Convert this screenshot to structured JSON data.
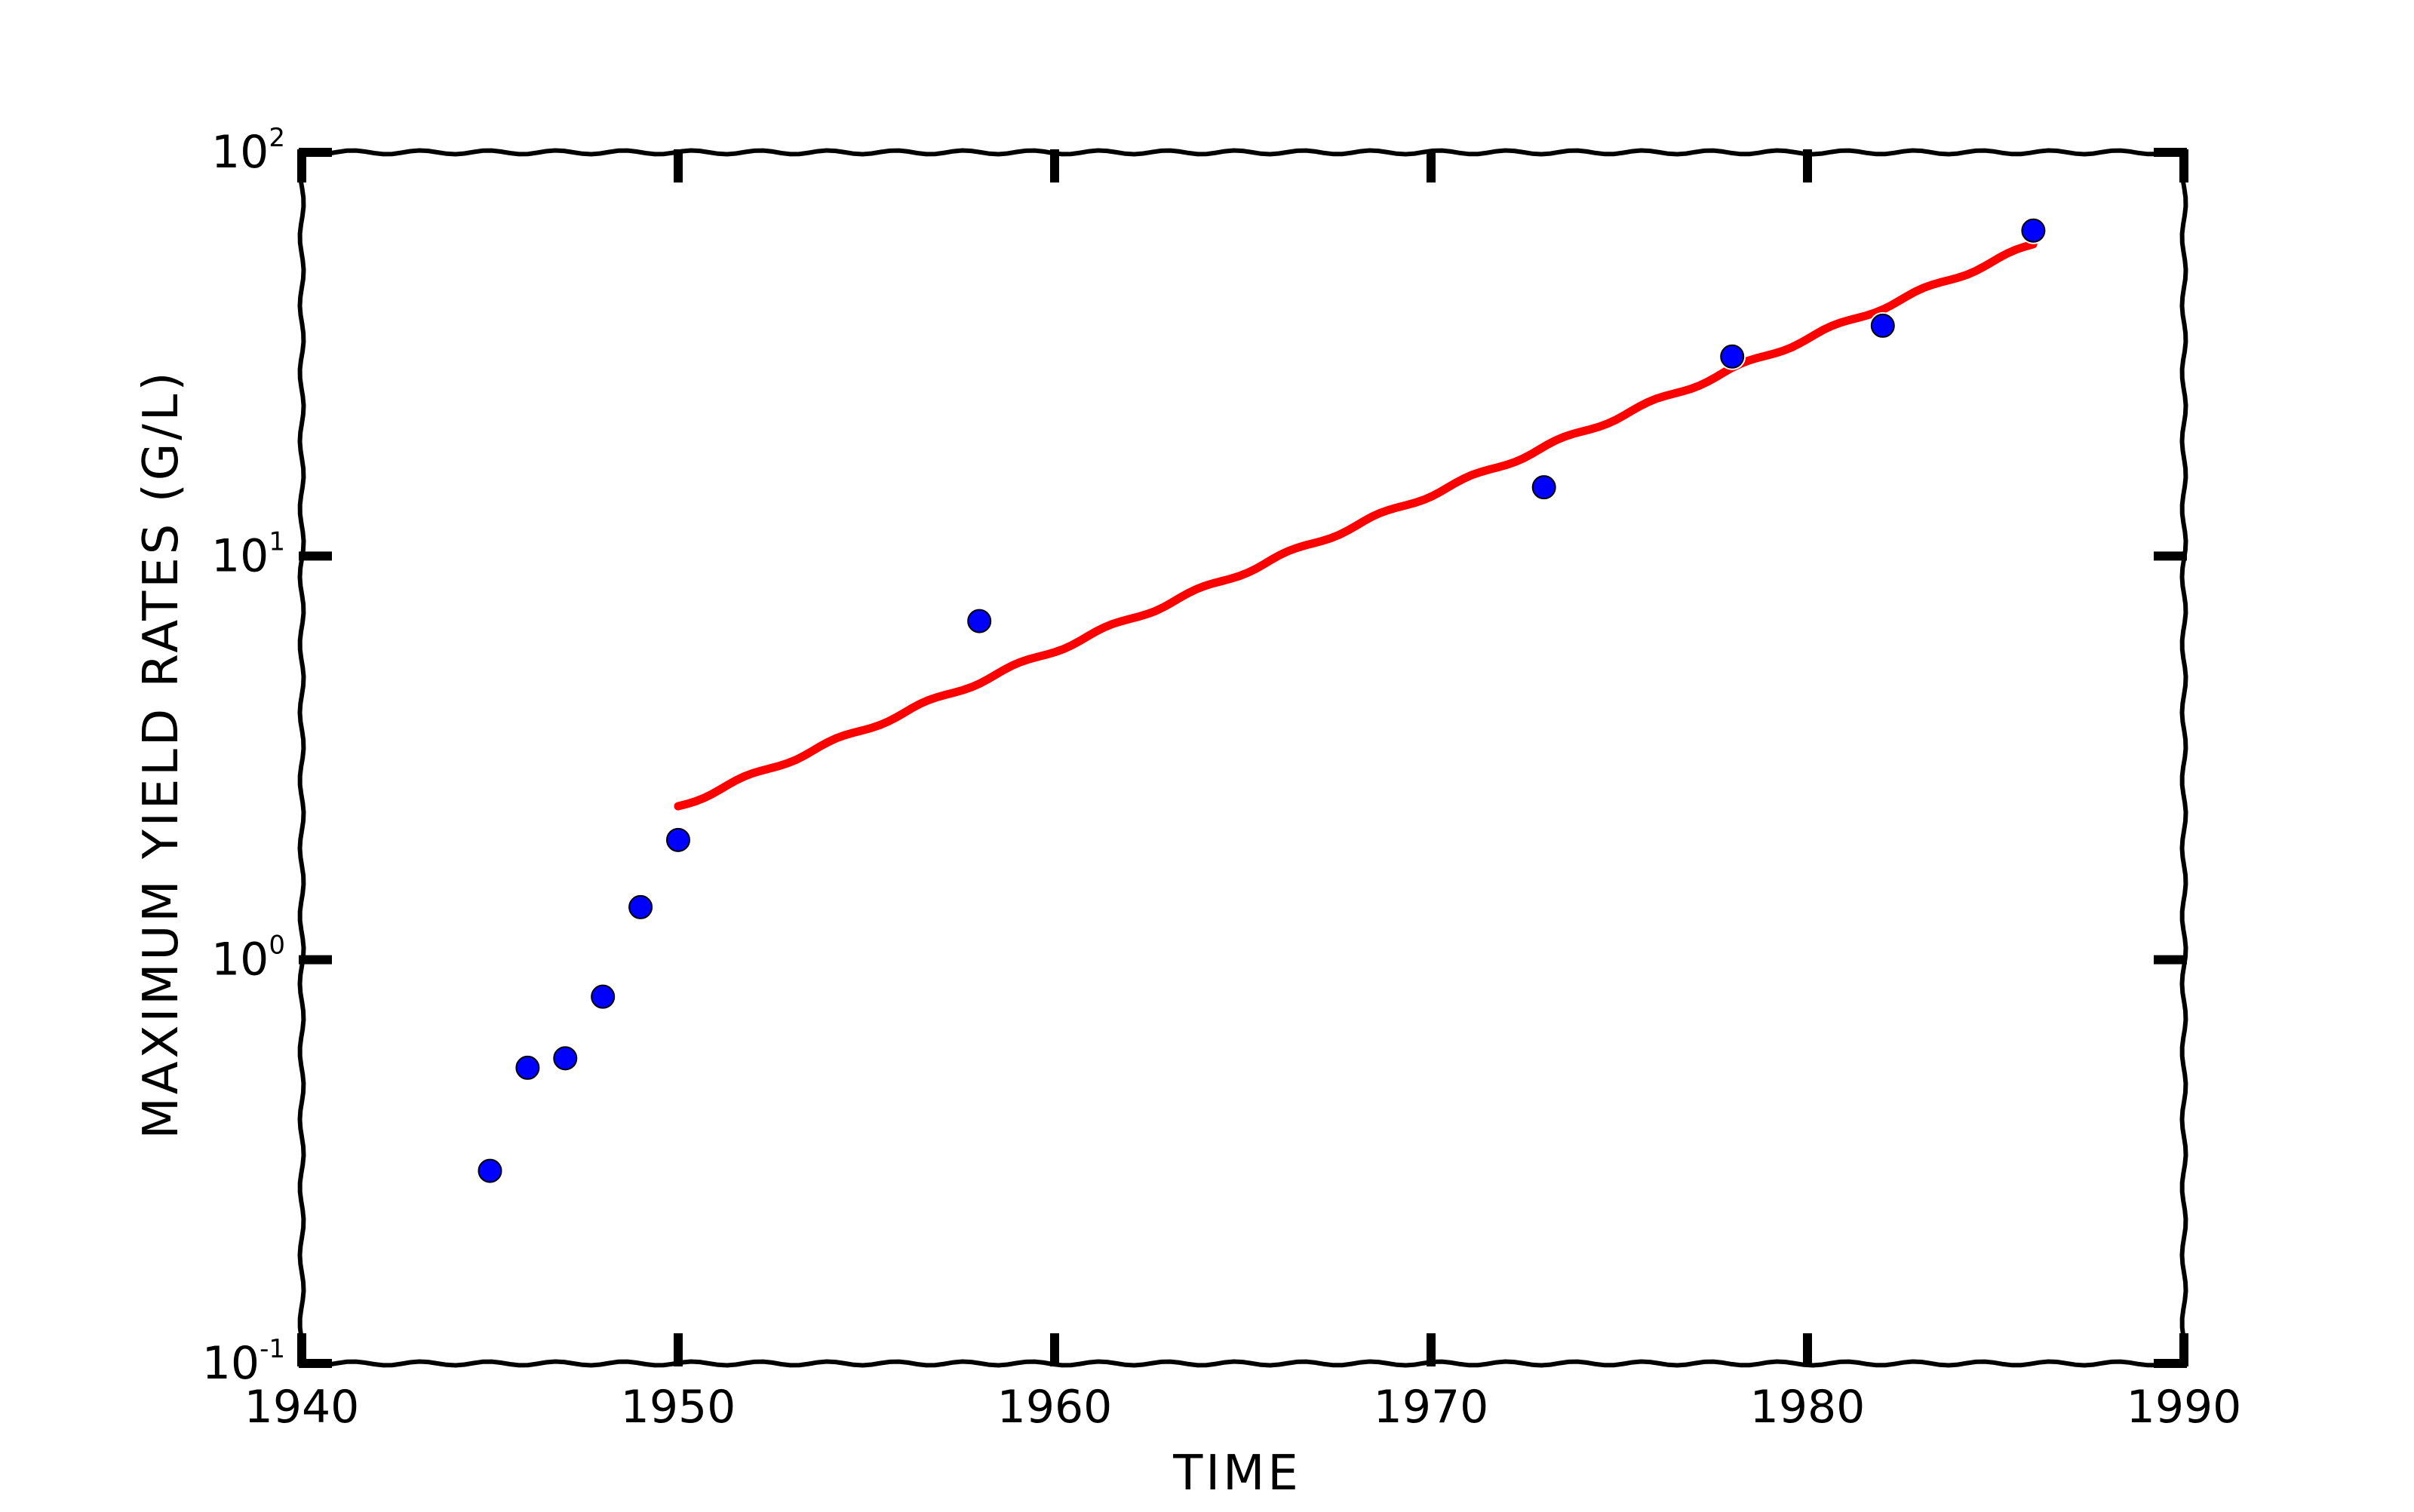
{
  "chart_data": {
    "type": "scatter",
    "title": "",
    "xlabel": "TIME",
    "ylabel": "MAXIMUM YIELD RATES (G/L)",
    "xlim": [
      1940,
      1990
    ],
    "ylim": [
      0.1,
      100
    ],
    "yscale": "log",
    "grid": false,
    "legend": "none",
    "x_ticks": [
      "1940",
      "1950",
      "1960",
      "1970",
      "1980",
      "1990"
    ],
    "y_ticks": [
      {
        "base": "10",
        "exp": "-1",
        "value": 0.1
      },
      {
        "base": "10",
        "exp": "0",
        "value": 1
      },
      {
        "base": "10",
        "exp": "1",
        "value": 10
      },
      {
        "base": "10",
        "exp": "2",
        "value": 100
      }
    ],
    "series": [
      {
        "type": "scatter",
        "color": "#0000ff",
        "x": [
          1945,
          1946,
          1947,
          1948,
          1949,
          1950,
          1958,
          1973,
          1978,
          1982,
          1986
        ],
        "y": [
          0.3,
          0.54,
          0.57,
          0.81,
          1.35,
          1.98,
          6.9,
          14.8,
          31.2,
          37.2,
          64
        ]
      },
      {
        "type": "line",
        "color": "#ff0000",
        "x": [
          1950,
          1986
        ],
        "y": [
          2.4,
          59
        ]
      }
    ]
  }
}
